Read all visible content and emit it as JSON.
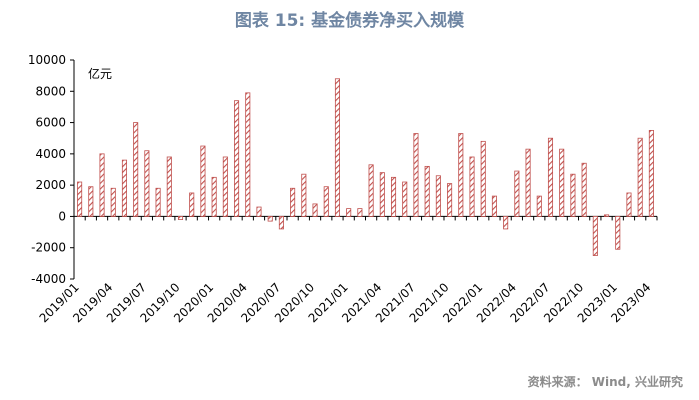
{
  "header": {
    "title": "图表 15: 基金债券净买入规模"
  },
  "footer": {
    "source": "资料来源： Wind, 兴业研究"
  },
  "colors": {
    "bar_stroke": "#c0504d",
    "title": "#6f86a3"
  },
  "chart_data": {
    "type": "bar",
    "title": "图表 15: 基金债券净买入规模",
    "unit_label": "亿元",
    "ylim": [
      -4000,
      10000
    ],
    "yticks": [
      -4000,
      -2000,
      0,
      2000,
      4000,
      6000,
      8000,
      10000
    ],
    "grid": false,
    "bar_pattern": "diagonal-hatch",
    "xtick_labels": [
      "2019/01",
      "2019/04",
      "2019/07",
      "2019/10",
      "2020/01",
      "2020/04",
      "2020/07",
      "2020/10",
      "2021/01",
      "2021/04",
      "2021/07",
      "2021/10",
      "2022/01",
      "2022/04",
      "2022/07",
      "2022/10",
      "2023/01",
      "2023/04"
    ],
    "categories": [
      "2019/01",
      "2019/02",
      "2019/03",
      "2019/04",
      "2019/05",
      "2019/06",
      "2019/07",
      "2019/08",
      "2019/09",
      "2019/10",
      "2019/11",
      "2019/12",
      "2020/01",
      "2020/02",
      "2020/03",
      "2020/04",
      "2020/05",
      "2020/06",
      "2020/07",
      "2020/08",
      "2020/09",
      "2020/10",
      "2020/11",
      "2020/12",
      "2021/01",
      "2021/02",
      "2021/03",
      "2021/04",
      "2021/05",
      "2021/06",
      "2021/07",
      "2021/08",
      "2021/09",
      "2021/10",
      "2021/11",
      "2021/12",
      "2022/01",
      "2022/02",
      "2022/03",
      "2022/04",
      "2022/05",
      "2022/06",
      "2022/07",
      "2022/08",
      "2022/09",
      "2022/10",
      "2022/11",
      "2022/12",
      "2023/01",
      "2023/02",
      "2023/03",
      "2023/04"
    ],
    "values": [
      2200,
      1900,
      4000,
      1800,
      3600,
      6000,
      4200,
      1800,
      3800,
      -200,
      1500,
      4500,
      2500,
      3800,
      7400,
      7900,
      600,
      -300,
      -800,
      1800,
      2700,
      800,
      1900,
      8800,
      500,
      500,
      3300,
      2800,
      2500,
      2200,
      5300,
      3200,
      2600,
      2100,
      5300,
      3800,
      4800,
      1300,
      -800,
      2900,
      4300,
      1300,
      5000,
      4300,
      2700,
      3400,
      -2500,
      100,
      -2100,
      1500,
      5000,
      5500
    ]
  }
}
